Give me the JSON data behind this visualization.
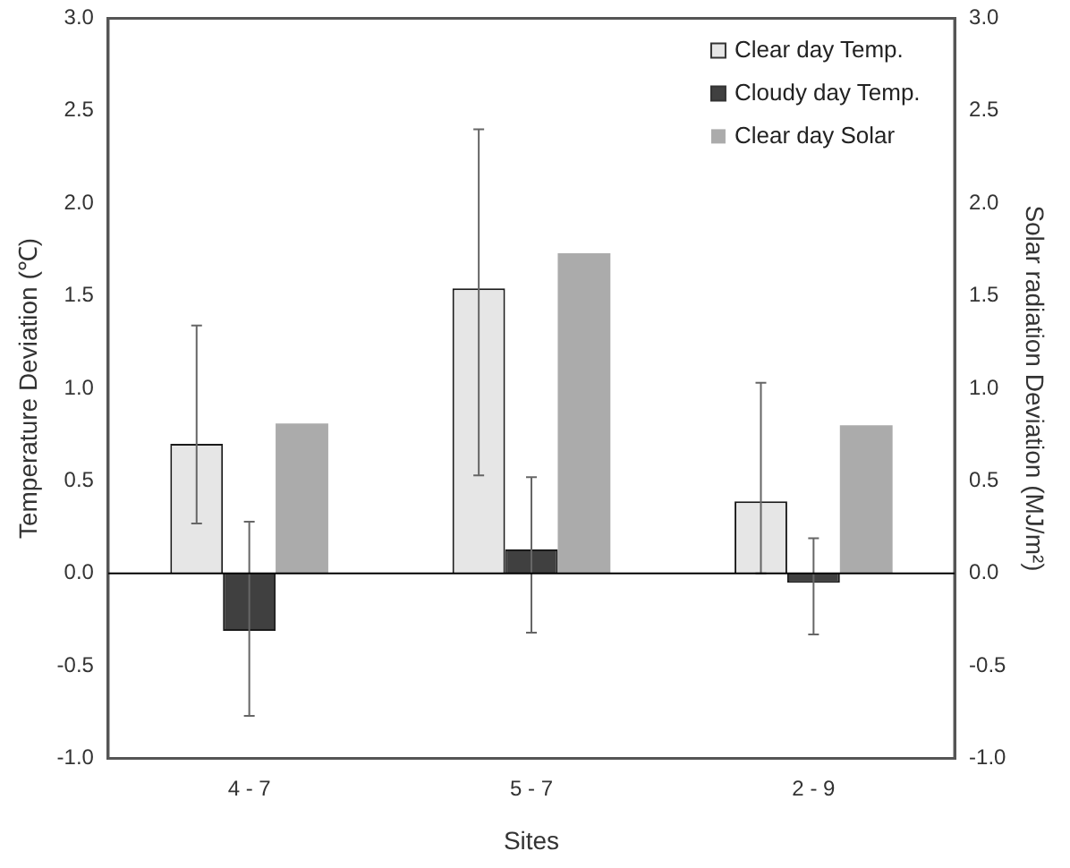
{
  "chart_data": {
    "type": "bar",
    "xlabel": "Sites",
    "ylabel": "Temperature Deviation (℃)",
    "y2label": "Solar radiation Deviation (MJ/m²)",
    "categories": [
      "4 - 7",
      "5 - 7",
      "2 - 9"
    ],
    "series": [
      {
        "name": "Clear day Temp.",
        "color": "#e6e6e6",
        "values": [
          0.7,
          1.54,
          0.39
        ],
        "errors": [
          [
            0.27,
            1.34
          ],
          [
            0.53,
            2.4
          ],
          [
            0,
            1.03
          ]
        ]
      },
      {
        "name": "Cloudy day Temp.",
        "color": "#404040",
        "values": [
          -0.31,
          0.13,
          -0.05
        ],
        "errors": [
          [
            -0.77,
            0.28
          ],
          [
            -0.32,
            0.52
          ],
          [
            -0.33,
            0.19
          ]
        ]
      },
      {
        "name": "Clear day Solar",
        "color": "#ababab",
        "values": [
          0.81,
          1.73,
          0.8
        ],
        "axis": "y2"
      }
    ],
    "ylim": [
      -1,
      3
    ],
    "yticks": [
      {
        "value": -1,
        "label": "-1.0"
      },
      {
        "value": -0.5,
        "label": "-0.5"
      },
      {
        "value": 0,
        "label": "0.0"
      },
      {
        "value": 0.5,
        "label": "0.5"
      },
      {
        "value": 1,
        "label": "1.0"
      },
      {
        "value": 1.5,
        "label": "1.5"
      },
      {
        "value": 2,
        "label": "2.0"
      },
      {
        "value": 2.5,
        "label": "2.5"
      },
      {
        "value": 3,
        "label": "3.0"
      }
    ],
    "y2lim": [
      -1,
      3
    ],
    "y2ticks": [
      {
        "value": -1,
        "label": "-1.0"
      },
      {
        "value": -0.5,
        "label": "-0.5"
      },
      {
        "value": 0,
        "label": "0.0"
      },
      {
        "value": 0.5,
        "label": "0.5"
      },
      {
        "value": 1,
        "label": "1.0"
      },
      {
        "value": 1.5,
        "label": "1.5"
      },
      {
        "value": 2,
        "label": "2.0"
      },
      {
        "value": 2.5,
        "label": "2.5"
      },
      {
        "value": 3,
        "label": "3.0"
      }
    ],
    "ref_lines": [
      {
        "axis": "y",
        "value": 0,
        "color": "#000000"
      }
    ],
    "grid": false,
    "legend": "top right"
  }
}
